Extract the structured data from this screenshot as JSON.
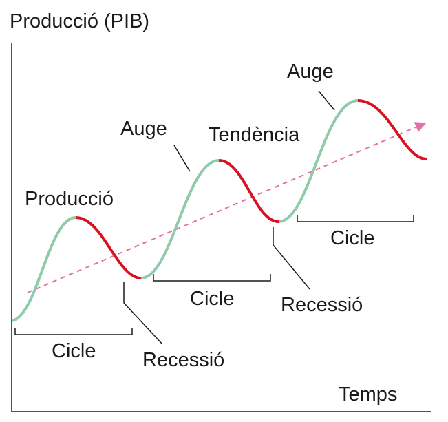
{
  "title": "Producció (PIB)",
  "x_axis_label": "Temps",
  "labels": {
    "production": "Producció",
    "trend": "Tendència",
    "booms": [
      "Auge",
      "Auge"
    ],
    "recessions": [
      "Recessió",
      "Recessió"
    ],
    "cycles": [
      "Cicle",
      "Cicle",
      "Cicle"
    ]
  }
}
